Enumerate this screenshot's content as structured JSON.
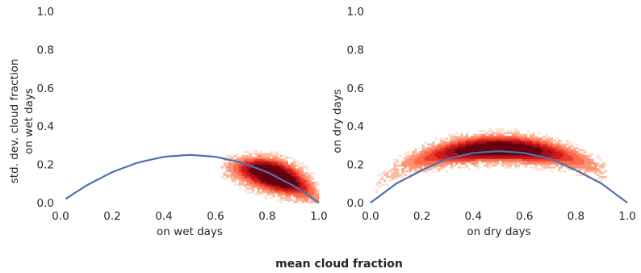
{
  "figure": {
    "common_xlabel": "mean cloud fraction",
    "curve_color": "#4c72b0",
    "density_colormap": [
      "#fee0d2",
      "#fcbba1",
      "#fc9272",
      "#fb6a4a",
      "#ef3b2c",
      "#cb181d",
      "#a50f15",
      "#67000d"
    ]
  },
  "chart_data": [
    {
      "type": "heatmap",
      "panel": "left",
      "xlabel": "on wet days",
      "ylabel_lines": [
        "std. dev. cloud fraction",
        "on wet days"
      ],
      "xlim": [
        0.0,
        1.0
      ],
      "ylim": [
        0.0,
        1.0
      ],
      "xticks": [
        "0.0",
        "0.2",
        "0.4",
        "0.6",
        "0.8",
        "1.0"
      ],
      "yticks": [
        "0.0",
        "0.2",
        "0.4",
        "0.6",
        "0.8",
        "1.0"
      ],
      "grid": false,
      "overlay_curve": {
        "description_of_shape": "sqrt(x(1-x)) scaled",
        "x": [
          0.02,
          0.1,
          0.2,
          0.3,
          0.4,
          0.5,
          0.6,
          0.7,
          0.8,
          0.9,
          0.98,
          1.0
        ],
        "y": [
          0.02,
          0.09,
          0.16,
          0.21,
          0.24,
          0.25,
          0.24,
          0.21,
          0.16,
          0.09,
          0.02,
          0.0
        ]
      },
      "density": {
        "x_range": [
          0.62,
          1.0
        ],
        "y_range": [
          0.0,
          0.29
        ],
        "peak": [
          0.83,
          0.15
        ],
        "note": "dense red cloud concentrated near x≈0.8–0.9, y≈0.1–0.2"
      }
    },
    {
      "type": "heatmap",
      "panel": "right",
      "xlabel": "on dry days",
      "ylabel_lines": [
        "on dry days"
      ],
      "xlim": [
        0.0,
        1.0
      ],
      "ylim": [
        0.0,
        1.0
      ],
      "xticks": [
        "0.0",
        "0.2",
        "0.4",
        "0.6",
        "0.8",
        "1.0"
      ],
      "yticks": [
        "0.0",
        "0.2",
        "0.4",
        "0.6",
        "0.8",
        "1.0"
      ],
      "grid": false,
      "overlay_curve": {
        "x": [
          0.0,
          0.1,
          0.2,
          0.3,
          0.4,
          0.5,
          0.6,
          0.7,
          0.8,
          0.9,
          1.0
        ],
        "y": [
          0.0,
          0.1,
          0.17,
          0.23,
          0.26,
          0.27,
          0.26,
          0.23,
          0.17,
          0.1,
          0.0
        ]
      },
      "density": {
        "x_range": [
          0.02,
          0.9
        ],
        "y_range": [
          0.0,
          0.35
        ],
        "peak": [
          0.5,
          0.25
        ],
        "note": "broad red band along the curve, densest x≈0.4–0.6, y≈0.2–0.3"
      }
    }
  ]
}
